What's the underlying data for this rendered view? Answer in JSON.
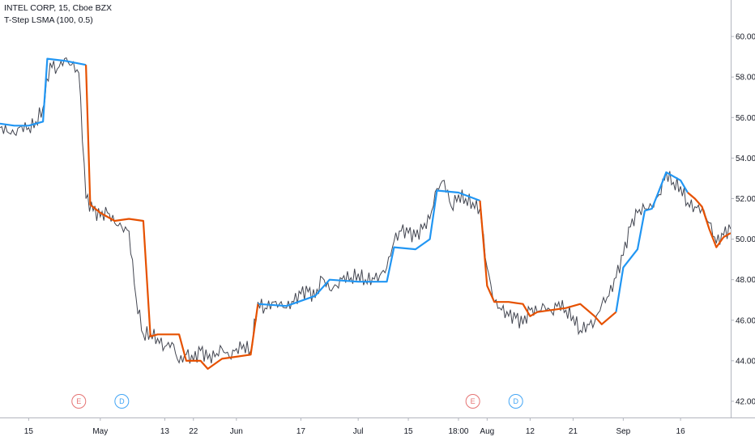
{
  "header": {
    "symbol_line": "INTEL CORP, 15, Cboe BZX",
    "study_line": "T-Step LSMA (100, 0.5)"
  },
  "colors": {
    "up": "#2196f3",
    "down": "#e65100",
    "price": "#434651",
    "earnings": "#e57373",
    "dividends": "#42a5f5",
    "axis_text": "#131722",
    "axis_line": "#b2b5be"
  },
  "chart_data": {
    "type": "line",
    "title": "INTEL CORP, 15, Cboe BZX",
    "xlabel": "",
    "ylabel": "",
    "ylim": [
      41.2,
      61.8
    ],
    "grid": false,
    "y_ticks": [
      42,
      44,
      46,
      48,
      50,
      52,
      54,
      56,
      58,
      60
    ],
    "y_tick_labels": [
      "42.00",
      "44.00",
      "46.00",
      "48.00",
      "50.00",
      "52.00",
      "54.00",
      "56.00",
      "58.00",
      "60.00"
    ],
    "x_ticks": [
      {
        "t": 4,
        "label": "15"
      },
      {
        "t": 14,
        "label": "May"
      },
      {
        "t": 23,
        "label": "13"
      },
      {
        "t": 27,
        "label": "22"
      },
      {
        "t": 33,
        "label": "Jun"
      },
      {
        "t": 42,
        "label": "17"
      },
      {
        "t": 50,
        "label": "Jul"
      },
      {
        "t": 57,
        "label": "15"
      },
      {
        "t": 64,
        "label": "18:00"
      },
      {
        "t": 68,
        "label": "Aug"
      },
      {
        "t": 74,
        "label": "12"
      },
      {
        "t": 80,
        "label": "21"
      },
      {
        "t": 87,
        "label": "Sep"
      },
      {
        "t": 95,
        "label": "16"
      }
    ],
    "x_range": [
      0,
      102
    ],
    "series": [
      {
        "role": "price",
        "values": [
          55.5,
          55.3,
          55.2,
          55.6,
          55.5,
          55.8,
          56.5,
          58.7,
          58.4,
          58.9,
          58.6,
          58.2,
          52.0,
          51.4,
          51.1,
          51.3,
          50.8,
          50.6,
          50.4,
          47.1,
          45.3,
          45.4,
          45.1,
          44.7,
          44.9,
          43.9,
          44.3,
          44.0,
          44.5,
          44.1,
          44.2,
          44.6,
          44.2,
          44.6,
          44.8,
          44.5,
          46.9,
          46.6,
          46.9,
          46.8,
          46.6,
          46.9,
          47.3,
          47.4,
          47.1,
          48.1,
          47.5,
          47.7,
          48.2,
          48.1,
          48.3,
          48.0,
          48.1,
          48.2,
          48.6,
          49.9,
          50.4,
          50.3,
          50.1,
          50.5,
          51.0,
          52.5,
          52.9,
          51.6,
          52.2,
          52.0,
          51.8,
          51.5,
          48.6,
          46.9,
          46.5,
          46.2,
          46.1,
          45.8,
          46.5,
          46.4,
          46.7,
          46.4,
          46.9,
          46.5,
          46.2,
          45.5,
          45.8,
          45.9,
          46.8,
          47.2,
          48.1,
          49.2,
          50.6,
          51.3,
          51.5,
          51.6,
          52.2,
          53.3,
          52.8,
          52.6,
          51.8,
          51.6,
          51.5,
          50.8,
          49.8,
          50.2,
          50.5
        ]
      },
      {
        "role": "lsma_up",
        "segments": [
          [
            [
              0,
              55.7
            ],
            [
              2,
              55.6
            ],
            [
              4,
              55.6
            ],
            [
              6,
              55.8
            ],
            [
              6.6,
              58.9
            ],
            [
              9,
              58.8
            ],
            [
              12,
              58.6
            ]
          ],
          [
            [
              36,
              46.8
            ],
            [
              40,
              46.7
            ],
            [
              44,
              47.2
            ],
            [
              46,
              48.0
            ],
            [
              50,
              47.9
            ],
            [
              54,
              47.9
            ],
            [
              55,
              49.6
            ],
            [
              58,
              49.5
            ],
            [
              60,
              50.0
            ],
            [
              61,
              52.4
            ],
            [
              64,
              52.3
            ],
            [
              67,
              51.9
            ]
          ],
          [
            [
              86,
              46.4
            ],
            [
              87,
              48.6
            ],
            [
              89,
              49.5
            ],
            [
              90,
              51.4
            ],
            [
              91,
              51.5
            ],
            [
              92,
              52.4
            ],
            [
              93,
              53.3
            ],
            [
              95,
              52.9
            ],
            [
              96,
              52.3
            ]
          ]
        ]
      },
      {
        "role": "lsma_down",
        "segments": [
          [
            [
              12,
              58.6
            ],
            [
              12.6,
              51.7
            ],
            [
              14,
              51.3
            ],
            [
              16,
              50.9
            ],
            [
              18,
              51.0
            ],
            [
              20,
              50.9
            ],
            [
              21,
              45.2
            ],
            [
              22,
              45.3
            ],
            [
              25,
              45.3
            ],
            [
              26,
              44.0
            ],
            [
              28,
              44.0
            ],
            [
              29,
              43.6
            ],
            [
              31,
              44.1
            ],
            [
              33,
              44.2
            ],
            [
              35,
              44.3
            ],
            [
              36,
              46.8
            ]
          ],
          [
            [
              67,
              51.9
            ],
            [
              68,
              47.7
            ],
            [
              69,
              46.9
            ],
            [
              71,
              46.9
            ],
            [
              73,
              46.8
            ],
            [
              74,
              46.2
            ],
            [
              75,
              46.4
            ],
            [
              77,
              46.5
            ],
            [
              79,
              46.6
            ],
            [
              81,
              46.8
            ],
            [
              83,
              46.2
            ],
            [
              84,
              45.8
            ],
            [
              86,
              46.4
            ]
          ],
          [
            [
              96,
              52.3
            ],
            [
              97,
              52.0
            ],
            [
              98,
              51.6
            ],
            [
              99,
              50.5
            ],
            [
              100,
              49.6
            ],
            [
              101,
              50.1
            ],
            [
              102,
              50.3
            ]
          ]
        ]
      }
    ],
    "events": [
      {
        "t": 11,
        "label": "E",
        "kind": "earnings"
      },
      {
        "t": 17,
        "label": "D",
        "kind": "dividends"
      },
      {
        "t": 66,
        "label": "E",
        "kind": "earnings"
      },
      {
        "t": 72,
        "label": "D",
        "kind": "dividends"
      }
    ]
  }
}
